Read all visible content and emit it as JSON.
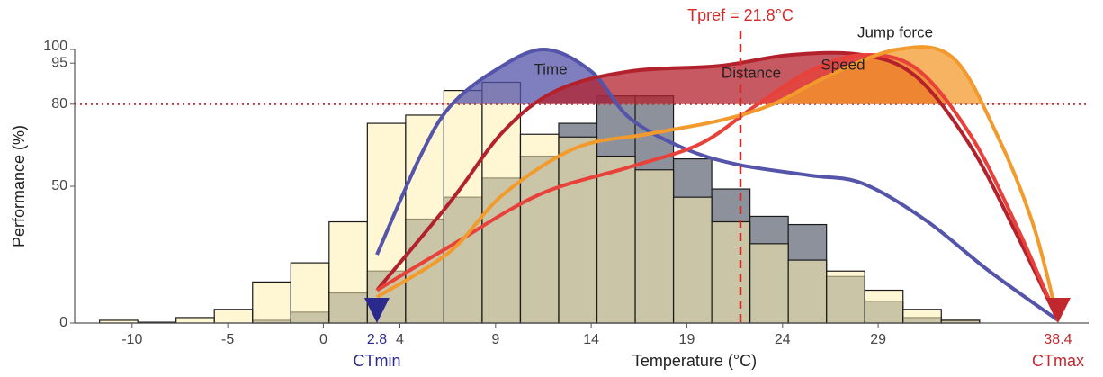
{
  "chart_data": {
    "type": "histogram",
    "x_label": "Temperature (°C)",
    "y_label": "Performance (%)",
    "xlim": [
      -13,
      40
    ],
    "ylim": [
      0,
      100
    ],
    "xticks": [
      -10,
      -5,
      0,
      4,
      9,
      14,
      19,
      24,
      29
    ],
    "yticks": [
      0,
      50,
      80,
      95,
      100
    ],
    "bins": [
      -11.7,
      -9.7,
      -7.7,
      -5.7,
      -3.7,
      -1.7,
      0.3,
      2.3,
      4.3,
      6.3,
      8.3,
      10.3,
      12.3,
      14.3,
      16.3,
      18.3,
      20.3,
      22.3,
      24.3,
      26.3,
      28.3,
      30.3,
      32.3,
      34.3
    ],
    "histograms": [
      {
        "color": "#8d919c",
        "values": [
          0,
          0,
          0,
          0,
          1,
          4,
          11,
          19,
          38,
          46,
          53,
          61,
          73,
          83,
          83,
          60,
          49,
          39,
          36,
          17,
          8,
          2,
          1
        ]
      },
      {
        "color": "#fff0b0",
        "values": [
          1,
          0.3,
          2,
          5,
          15,
          22,
          37,
          73,
          76,
          85,
          88,
          69,
          68,
          61,
          56,
          46,
          37,
          29,
          23,
          19,
          12,
          5,
          1
        ]
      }
    ],
    "series": [
      {
        "name": "Time",
        "color": "#5454aa",
        "x": [
          2.8,
          5,
          6.6,
          8.9,
          11.5,
          14,
          16,
          18.8,
          21.6,
          25.4,
          28.2,
          31.5,
          34.8,
          38.4
        ],
        "values": [
          25,
          60,
          79,
          92,
          100,
          92,
          75,
          64,
          58,
          54,
          51,
          37.5,
          19,
          1
        ]
      },
      {
        "name": "Distance",
        "color": "#b3222c",
        "x": [
          2.8,
          6.6,
          9.4,
          12.2,
          16,
          20.7,
          24.4,
          28.2,
          31,
          33.8,
          36.2,
          38.4
        ],
        "values": [
          12,
          44,
          70,
          85,
          92,
          94,
          98,
          98,
          90,
          65,
          33,
          1
        ]
      },
      {
        "name": "Speed",
        "color": "#e8413a",
        "x": [
          2.8,
          6.6,
          11.3,
          16,
          19.7,
          22.5,
          25.4,
          28.2,
          31,
          33.8,
          36.2,
          38.4
        ],
        "values": [
          12,
          28,
          47,
          57,
          65.5,
          79,
          92,
          98,
          93,
          69,
          36,
          1
        ]
      },
      {
        "name": "Jump force",
        "color": "#f39a2c",
        "x": [
          2.8,
          6.6,
          9.4,
          13.2,
          16.9,
          20.7,
          23.5,
          26.3,
          30,
          32.9,
          35.2,
          37.1,
          38.4
        ],
        "values": [
          9.5,
          26,
          47,
          64,
          69,
          74,
          80,
          90,
          100,
          97,
          69,
          36,
          1
        ]
      }
    ],
    "threshold": {
      "value": 80,
      "color": "#c0282d"
    },
    "reference_line": {
      "label": "Tpref = 21.8°C",
      "value": 21.8,
      "color": "#d42a2a"
    },
    "markers": [
      {
        "name": "CTmin",
        "value": 2.8,
        "color": "#2a2a8c"
      },
      {
        "name": "CTmax",
        "value": 38.4,
        "color": "#c0282d"
      }
    ]
  }
}
